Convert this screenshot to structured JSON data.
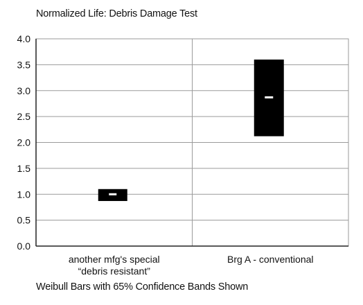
{
  "chart_data": {
    "type": "bar",
    "title": "Normalized Life: Debris Damage Test",
    "subtitle": "",
    "xlabel": "",
    "ylabel": "",
    "footnote": "Weibull Bars with 65% Confidence Bands Shown",
    "ylim": [
      0,
      4.0
    ],
    "yticks": [
      "0.0",
      "0.5",
      "1.0",
      "1.5",
      "2.0",
      "2.5",
      "3.0",
      "3.5",
      "4.0"
    ],
    "grid": true,
    "categories": [
      [
        "another mfg's special",
        "“debris resistant”"
      ],
      [
        "Brg A - conventional"
      ]
    ],
    "series": [
      {
        "values": [
          1.0,
          2.87
        ],
        "lower": [
          0.87,
          2.12
        ],
        "upper": [
          1.1,
          3.6
        ]
      }
    ],
    "colors": {
      "band": "#000000",
      "center_mark": "#ffffff",
      "grid": "#9a9a9a"
    }
  }
}
